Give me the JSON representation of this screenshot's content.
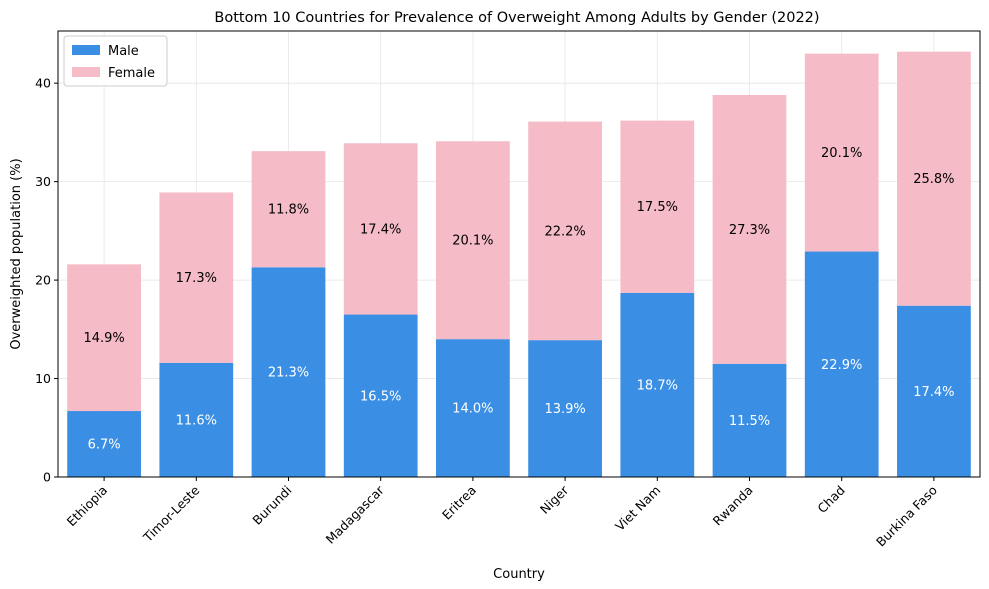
{
  "chart_data": {
    "type": "bar",
    "stacked": true,
    "title": "Bottom 10 Countries for Prevalence of Overweight Among Adults by Gender (2022)",
    "xlabel": "Country",
    "ylabel": "Overweighted population (%)",
    "ylim": [
      0,
      45.3
    ],
    "yticks": [
      0,
      10,
      20,
      30,
      40
    ],
    "grid": true,
    "legend_position": "top-left",
    "categories": [
      "Ethiopia",
      "Timor-Leste",
      "Burundi",
      "Madagascar",
      "Eritrea",
      "Niger",
      "Viet Nam",
      "Rwanda",
      "Chad",
      "Burkina Faso"
    ],
    "series": [
      {
        "name": "Male",
        "color": "#3a8fe4",
        "label_color": "#ffffff",
        "values": [
          6.7,
          11.6,
          21.3,
          16.5,
          14.0,
          13.9,
          18.7,
          11.5,
          22.9,
          17.4
        ],
        "labels": [
          "6.7%",
          "11.6%",
          "21.3%",
          "16.5%",
          "14.0%",
          "13.9%",
          "18.7%",
          "11.5%",
          "22.9%",
          "17.4%"
        ]
      },
      {
        "name": "Female",
        "color": "#f5bcc7",
        "label_color": "#000000",
        "values": [
          14.9,
          17.3,
          11.8,
          17.4,
          20.1,
          22.2,
          17.5,
          27.3,
          20.1,
          25.8
        ],
        "labels": [
          "14.9%",
          "17.3%",
          "11.8%",
          "17.4%",
          "20.1%",
          "22.2%",
          "17.5%",
          "27.3%",
          "20.1%",
          "25.8%"
        ]
      }
    ]
  }
}
